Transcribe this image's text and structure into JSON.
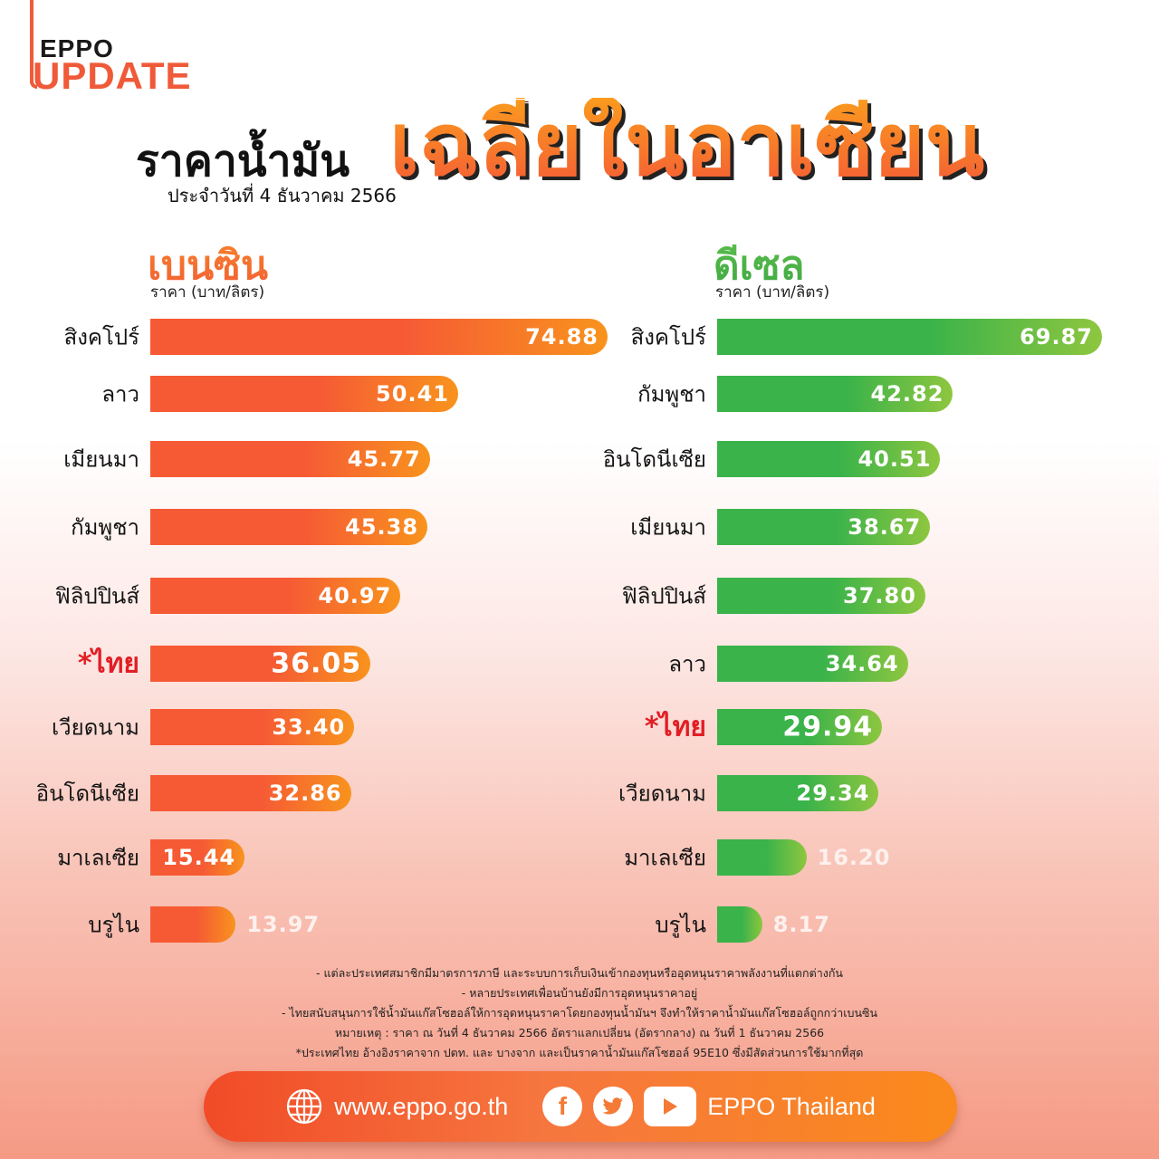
{
  "logo": {
    "line1": "EPPO",
    "line2": "UPDATE"
  },
  "header": {
    "title_main": "ราคาน้ำมัน",
    "date": "ประจำวันที่ 4 ธันวาคม 2566",
    "title_big": "เฉลี่ยในอาเซียน"
  },
  "petrol": {
    "heading": "เบนซิน",
    "unit": "ราคา (บาท/ลิตร)",
    "color_start": "#f65a35",
    "color_end": "#f8931d",
    "rows": [
      {
        "country": "สิงคโปร์",
        "value": "74.88"
      },
      {
        "country": "ลาว",
        "value": "50.41"
      },
      {
        "country": "เมียนมา",
        "value": "45.77"
      },
      {
        "country": "กัมพูชา",
        "value": "45.38"
      },
      {
        "country": "ฟิลิปปินส์",
        "value": "40.97"
      },
      {
        "country": "*ไทย",
        "value": "36.05"
      },
      {
        "country": "เวียดนาม",
        "value": "33.40"
      },
      {
        "country": "อินโดนีเซีย",
        "value": "32.86"
      },
      {
        "country": "มาเลเซีย",
        "value": "15.44"
      },
      {
        "country": "บรูไน",
        "value": "13.97"
      }
    ]
  },
  "diesel": {
    "heading": "ดีเซล",
    "unit": "ราคา (บาท/ลิตร)",
    "color_start": "#3ab34a",
    "color_end": "#8ec63f",
    "rows": [
      {
        "country": "สิงคโปร์",
        "value": "69.87"
      },
      {
        "country": "กัมพูชา",
        "value": "42.82"
      },
      {
        "country": "อินโดนีเซีย",
        "value": "40.51"
      },
      {
        "country": "เมียนมา",
        "value": "38.67"
      },
      {
        "country": "ฟิลิปปินส์",
        "value": "37.80"
      },
      {
        "country": "ลาว",
        "value": "34.64"
      },
      {
        "country": "*ไทย",
        "value": "29.94"
      },
      {
        "country": "เวียดนาม",
        "value": "29.34"
      },
      {
        "country": "มาเลเซีย",
        "value": "16.20"
      },
      {
        "country": "บรูไน",
        "value": "8.17"
      }
    ]
  },
  "notes": [
    "- แต่ละประเทศสมาชิกมีมาตรการภาษี และระบบการเก็บเงินเข้ากองทุนหรืออุดหนุนราคาพลังงานที่แตกต่างกัน",
    "- หลายประเทศเพื่อนบ้านยังมีการอุดหนุนราคาอยู่",
    "- ไทยสนับสนุนการใช้น้ำมันแก๊สโซฮอล์ให้การอุดหนุนราคาโดยกองทุนน้ำมันฯ จึงทำให้ราคาน้ำมันแก๊สโซฮอล์ถูกกว่าเบนซิน",
    "หมายเหตุ : ราคา ณ วันที่ 4 ธันวาคม 2566 อัตราแลกเปลี่ยน (อัตรากลาง) ณ วันที่ 1 ธันวาคม 2566",
    "*ประเทศไทย อ้างอิงราคาจาก ปตท. และ บางจาก และเป็นราคาน้ำมันแก๊สโซฮอล์ 95E10 ซึ่งมีสัดส่วนการใช้มากที่สุด"
  ],
  "footer": {
    "website": "www.eppo.go.th",
    "social_name": "EPPO Thailand",
    "icons": [
      "globe-icon",
      "facebook-icon",
      "twitter-icon",
      "youtube-icon"
    ]
  },
  "chart_data": [
    {
      "type": "bar",
      "orientation": "horizontal",
      "title": "ราคาน้ำมันเฉลี่ยในอาเซียน - เบนซิน",
      "subtitle": "ประจำวันที่ 4 ธันวาคม 2566",
      "xlabel": "ราคา (บาท/ลิตร)",
      "categories": [
        "สิงคโปร์",
        "ลาว",
        "เมียนมา",
        "กัมพูชา",
        "ฟิลิปปินส์",
        "*ไทย",
        "เวียดนาม",
        "อินโดนีเซีย",
        "มาเลเซีย",
        "บรูไน"
      ],
      "values": [
        74.88,
        50.41,
        45.77,
        45.38,
        40.97,
        36.05,
        33.4,
        32.86,
        15.44,
        13.97
      ],
      "grid": false
    },
    {
      "type": "bar",
      "orientation": "horizontal",
      "title": "ราคาน้ำมันเฉลี่ยในอาเซียน - ดีเซล",
      "subtitle": "ประจำวันที่ 4 ธันวาคม 2566",
      "xlabel": "ราคา (บาท/ลิตร)",
      "categories": [
        "สิงคโปร์",
        "กัมพูชา",
        "อินโดนีเซีย",
        "เมียนมา",
        "ฟิลิปปินส์",
        "ลาว",
        "*ไทย",
        "เวียดนาม",
        "มาเลเซีย",
        "บรูไน"
      ],
      "values": [
        69.87,
        42.82,
        40.51,
        38.67,
        37.8,
        34.64,
        29.94,
        29.34,
        16.2,
        8.17
      ],
      "grid": false
    }
  ]
}
